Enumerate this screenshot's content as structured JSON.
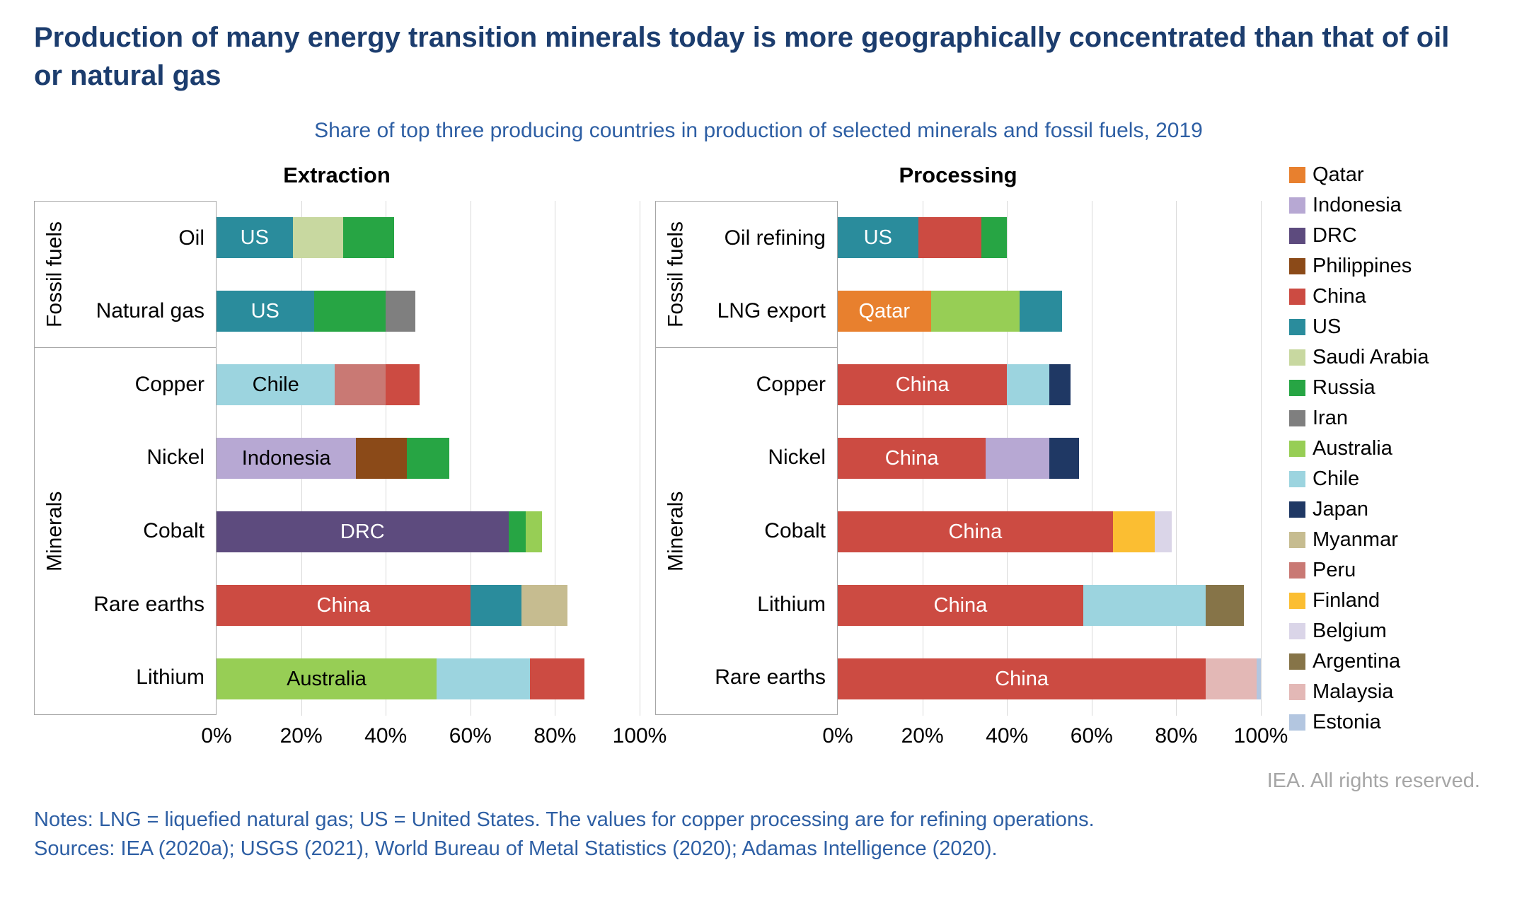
{
  "title": "Production of many energy transition minerals today is more geographically concentrated than that of oil or natural gas",
  "subtitle": "Share of top three producing countries in production of selected minerals and fossil fuels, 2019",
  "copyright": "IEA. All rights reserved.",
  "notes": "Notes: LNG = liquefied natural gas; US = United States. The values for copper processing are for refining operations.",
  "sources": "Sources: IEA (2020a); USGS (2021), World Bureau of Metal Statistics (2020); Adamas Intelligence (2020).",
  "colors": {
    "Qatar": "#E8802E",
    "Indonesia": "#B7A8D3",
    "DRC": "#5D4B7E",
    "Philippines": "#8B4A18",
    "China": "#CC4B42",
    "US": "#2A8C9C",
    "Saudi Arabia": "#C8D8A0",
    "Russia": "#27A544",
    "Iran": "#7F7F7F",
    "Australia": "#97CE55",
    "Chile": "#9CD4DF",
    "Japan": "#1F3864",
    "Myanmar": "#C6BC90",
    "Peru": "#C97974",
    "Finland": "#FBBE32",
    "Belgium": "#DAD5E8",
    "Argentina": "#867448",
    "Malaysia": "#E3B8B6",
    "Estonia": "#B3C6E0"
  },
  "legend": [
    "Qatar",
    "Indonesia",
    "DRC",
    "Philippines",
    "China",
    "US",
    "Saudi Arabia",
    "Russia",
    "Iran",
    "Australia",
    "Chile",
    "Japan",
    "Myanmar",
    "Peru",
    "Finland",
    "Belgium",
    "Argentina",
    "Malaysia",
    "Estonia"
  ],
  "chart_data": [
    {
      "type": "bar",
      "title": "Extraction",
      "orientation": "horizontal",
      "stacked": true,
      "x_unit": "%",
      "xlim": [
        0,
        100
      ],
      "x_ticks": [
        "0%",
        "20%",
        "40%",
        "60%",
        "80%",
        "100%"
      ],
      "grid": true,
      "groups": [
        {
          "label": "Fossil fuels",
          "rows": [
            {
              "category": "Oil",
              "bar_label": "US",
              "bar_label_color": "#FFFFFF",
              "segments": [
                {
                  "country": "US",
                  "value": 18
                },
                {
                  "country": "Saudi Arabia",
                  "value": 12
                },
                {
                  "country": "Russia",
                  "value": 12
                }
              ]
            },
            {
              "category": "Natural gas",
              "bar_label": "US",
              "bar_label_color": "#FFFFFF",
              "segments": [
                {
                  "country": "US",
                  "value": 23
                },
                {
                  "country": "Russia",
                  "value": 17
                },
                {
                  "country": "Iran",
                  "value": 7
                }
              ]
            }
          ]
        },
        {
          "label": "Minerals",
          "rows": [
            {
              "category": "Copper",
              "bar_label": "Chile",
              "bar_label_color": "#000000",
              "segments": [
                {
                  "country": "Chile",
                  "value": 28
                },
                {
                  "country": "Peru",
                  "value": 12
                },
                {
                  "country": "China",
                  "value": 8
                }
              ]
            },
            {
              "category": "Nickel",
              "bar_label": "Indonesia",
              "bar_label_color": "#000000",
              "segments": [
                {
                  "country": "Indonesia",
                  "value": 33
                },
                {
                  "country": "Philippines",
                  "value": 12
                },
                {
                  "country": "Russia",
                  "value": 10
                }
              ]
            },
            {
              "category": "Cobalt",
              "bar_label": "DRC",
              "bar_label_color": "#FFFFFF",
              "segments": [
                {
                  "country": "DRC",
                  "value": 69
                },
                {
                  "country": "Russia",
                  "value": 4
                },
                {
                  "country": "Australia",
                  "value": 4
                }
              ]
            },
            {
              "category": "Rare earths",
              "bar_label": "China",
              "bar_label_color": "#FFFFFF",
              "segments": [
                {
                  "country": "China",
                  "value": 60
                },
                {
                  "country": "US",
                  "value": 12
                },
                {
                  "country": "Myanmar",
                  "value": 11
                }
              ]
            },
            {
              "category": "Lithium",
              "bar_label": "Australia",
              "bar_label_color": "#000000",
              "segments": [
                {
                  "country": "Australia",
                  "value": 52
                },
                {
                  "country": "Chile",
                  "value": 22
                },
                {
                  "country": "China",
                  "value": 13
                }
              ]
            }
          ]
        }
      ]
    },
    {
      "type": "bar",
      "title": "Processing",
      "orientation": "horizontal",
      "stacked": true,
      "x_unit": "%",
      "xlim": [
        0,
        100
      ],
      "x_ticks": [
        "0%",
        "20%",
        "40%",
        "60%",
        "80%",
        "100%"
      ],
      "grid": true,
      "groups": [
        {
          "label": "Fossil fuels",
          "rows": [
            {
              "category": "Oil refining",
              "bar_label": "US",
              "bar_label_color": "#FFFFFF",
              "segments": [
                {
                  "country": "US",
                  "value": 19
                },
                {
                  "country": "China",
                  "value": 15
                },
                {
                  "country": "Russia",
                  "value": 6
                }
              ]
            },
            {
              "category": "LNG export",
              "bar_label": "Qatar",
              "bar_label_color": "#FFFFFF",
              "segments": [
                {
                  "country": "Qatar",
                  "value": 22
                },
                {
                  "country": "Australia",
                  "value": 21
                },
                {
                  "country": "US",
                  "value": 10
                }
              ]
            }
          ]
        },
        {
          "label": "Minerals",
          "rows": [
            {
              "category": "Copper",
              "bar_label": "China",
              "bar_label_color": "#FFFFFF",
              "segments": [
                {
                  "country": "China",
                  "value": 40
                },
                {
                  "country": "Chile",
                  "value": 10
                },
                {
                  "country": "Japan",
                  "value": 5
                }
              ]
            },
            {
              "category": "Nickel",
              "bar_label": "China",
              "bar_label_color": "#FFFFFF",
              "segments": [
                {
                  "country": "China",
                  "value": 35
                },
                {
                  "country": "Indonesia",
                  "value": 15
                },
                {
                  "country": "Japan",
                  "value": 7
                }
              ]
            },
            {
              "category": "Cobalt",
              "bar_label": "China",
              "bar_label_color": "#FFFFFF",
              "segments": [
                {
                  "country": "China",
                  "value": 65
                },
                {
                  "country": "Finland",
                  "value": 10
                },
                {
                  "country": "Belgium",
                  "value": 4
                }
              ]
            },
            {
              "category": "Lithium",
              "bar_label": "China",
              "bar_label_color": "#FFFFFF",
              "segments": [
                {
                  "country": "China",
                  "value": 58
                },
                {
                  "country": "Chile",
                  "value": 29
                },
                {
                  "country": "Argentina",
                  "value": 9
                }
              ]
            },
            {
              "category": "Rare earths",
              "bar_label": "China",
              "bar_label_color": "#FFFFFF",
              "segments": [
                {
                  "country": "China",
                  "value": 87
                },
                {
                  "country": "Malaysia",
                  "value": 12
                },
                {
                  "country": "Estonia",
                  "value": 1
                }
              ]
            }
          ]
        }
      ]
    }
  ]
}
